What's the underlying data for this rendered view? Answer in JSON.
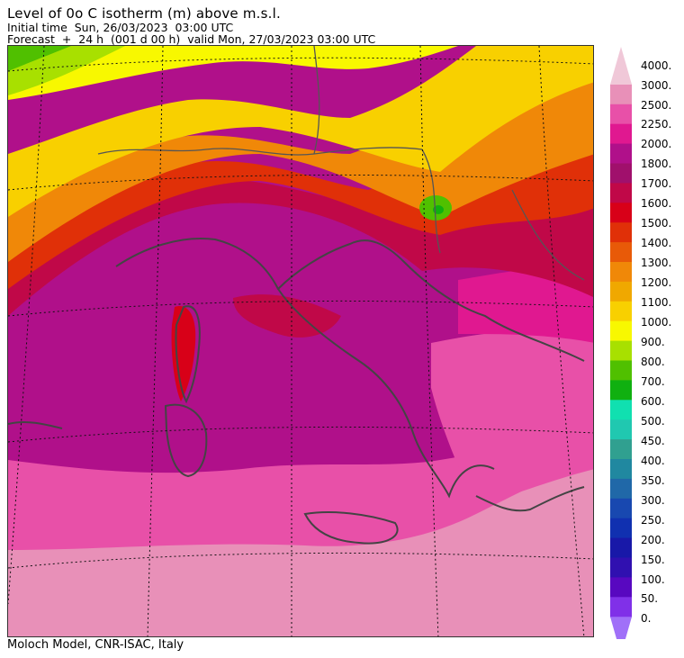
{
  "header": {
    "title": "Level of 0o C isotherm (m) above m.s.l.",
    "initial_time": "Initial time  Sun, 26/03/2023  03:00 UTC",
    "forecast": "Forecast  +  24 h  (001 d 00 h)  valid Mon, 27/03/2023 03:00 UTC"
  },
  "footer": "Moloch Model, CNR-ISAC, Italy",
  "legend": {
    "levels": [
      {
        "label": "4000.",
        "color": "#f0c8d8"
      },
      {
        "label": "3000.",
        "color": "#e890b8"
      },
      {
        "label": "2500.",
        "color": "#e850a8"
      },
      {
        "label": "2250.",
        "color": "#e01890"
      },
      {
        "label": "2000.",
        "color": "#b0108a"
      },
      {
        "label": "1800.",
        "color": "#a0106c"
      },
      {
        "label": "1700.",
        "color": "#c00848"
      },
      {
        "label": "1600.",
        "color": "#d80018"
      },
      {
        "label": "1500.",
        "color": "#e03008"
      },
      {
        "label": "1400.",
        "color": "#e85a08"
      },
      {
        "label": "1300.",
        "color": "#f08808"
      },
      {
        "label": "1200.",
        "color": "#f0a800"
      },
      {
        "label": "1100.",
        "color": "#f8d000"
      },
      {
        "label": "1000.",
        "color": "#f8f800"
      },
      {
        "label": "900.",
        "color": "#a8e000"
      },
      {
        "label": "800.",
        "color": "#50c000"
      },
      {
        "label": "700.",
        "color": "#10b010"
      },
      {
        "label": "600.",
        "color": "#10e0b0"
      },
      {
        "label": "500.",
        "color": "#20c8b0"
      },
      {
        "label": "450.",
        "color": "#30a090"
      },
      {
        "label": "400.",
        "color": "#2088a0"
      },
      {
        "label": "350.",
        "color": "#2068a8"
      },
      {
        "label": "300.",
        "color": "#1848b0"
      },
      {
        "label": "250.",
        "color": "#1030b0"
      },
      {
        "label": "200.",
        "color": "#1818a8"
      },
      {
        "label": "150.",
        "color": "#3010b0"
      },
      {
        "label": "100.",
        "color": "#5808c0"
      },
      {
        "label": "50.",
        "color": "#8030e8"
      },
      {
        "label": "0.",
        "color": "#a070f8"
      }
    ]
  }
}
